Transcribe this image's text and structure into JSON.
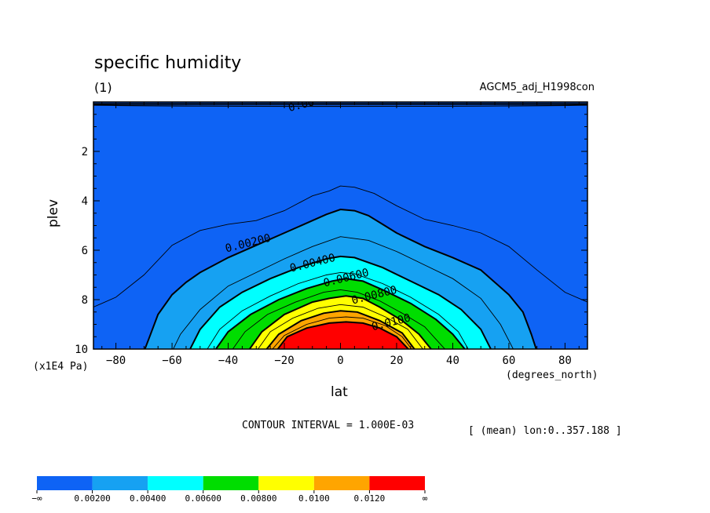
{
  "title": "specific humidity",
  "panel_id": "(1)",
  "run_label": "AGCM5_adj_H1998con",
  "interval_text": "CONTOUR INTERVAL = 1.000E-03",
  "mean_info": "[ (mean) lon:0..357.188 ]",
  "chart_data": {
    "type": "heatmap",
    "title": "specific humidity",
    "xlabel": "lat",
    "ylabel": "plev",
    "x_units": "(degrees_north)",
    "y_units": "(x1E4 Pa)",
    "xlim": [
      -88,
      88
    ],
    "ylim": [
      10,
      0
    ],
    "x_ticks": [
      -80,
      -60,
      -40,
      -20,
      0,
      20,
      40,
      60,
      80
    ],
    "x_tick_labels": [
      "−80",
      "−60",
      "−40",
      "−20",
      "0",
      "20",
      "40",
      "60",
      "80"
    ],
    "y_ticks": [
      2,
      4,
      6,
      8,
      10
    ],
    "y_tick_labels": [
      "2",
      "4",
      "6",
      "8",
      "10"
    ],
    "contour_interval": 0.001,
    "levels": [
      0.002,
      0.004,
      0.006,
      0.008,
      0.01,
      0.012
    ],
    "fill_colors": [
      "#0e63f5",
      "#16a1f2",
      "#00ffff",
      "#00dd00",
      "#ffff00",
      "#ffa500",
      "#ff0000"
    ],
    "colorbar_labels": [
      "−∞",
      "0.00200",
      "0.00400",
      "0.00600",
      "0.00800",
      "0.0100",
      "0.0120",
      "∞"
    ],
    "contour_labels": [
      {
        "text": "0.00",
        "lat": -14,
        "plev": 0.1
      },
      {
        "text": "0.00200",
        "lat": -33,
        "plev": 5.7
      },
      {
        "text": "0.00400",
        "lat": -10,
        "plev": 6.5
      },
      {
        "text": "0.00600",
        "lat": 2,
        "plev": 7.1
      },
      {
        "text": "0.00800",
        "lat": 12,
        "plev": 7.8
      },
      {
        "text": "0.0100",
        "lat": 18,
        "plev": 8.9
      }
    ],
    "contours": [
      {
        "level": 0.001,
        "points": [
          [
            -88,
            8.3
          ],
          [
            -80,
            7.9
          ],
          [
            -70,
            7.0
          ],
          [
            -60,
            5.8
          ],
          [
            -50,
            5.2
          ],
          [
            -40,
            4.95
          ],
          [
            -30,
            4.8
          ],
          [
            -20,
            4.4
          ],
          [
            -10,
            3.8
          ],
          [
            -4,
            3.6
          ],
          [
            0,
            3.4
          ],
          [
            5,
            3.45
          ],
          [
            12,
            3.7
          ],
          [
            20,
            4.2
          ],
          [
            30,
            4.75
          ],
          [
            40,
            5.0
          ],
          [
            50,
            5.3
          ],
          [
            60,
            5.85
          ],
          [
            70,
            6.8
          ],
          [
            80,
            7.7
          ],
          [
            88,
            8.1
          ]
        ]
      },
      {
        "level": 0.002,
        "points": [
          [
            -70,
            10.1
          ],
          [
            -68,
            9.5
          ],
          [
            -65,
            8.6
          ],
          [
            -60,
            7.8
          ],
          [
            -55,
            7.3
          ],
          [
            -50,
            6.9
          ],
          [
            -40,
            6.3
          ],
          [
            -30,
            5.8
          ],
          [
            -20,
            5.3
          ],
          [
            -10,
            4.8
          ],
          [
            -5,
            4.55
          ],
          [
            0,
            4.35
          ],
          [
            5,
            4.4
          ],
          [
            10,
            4.6
          ],
          [
            15,
            4.95
          ],
          [
            20,
            5.3
          ],
          [
            30,
            5.85
          ],
          [
            40,
            6.3
          ],
          [
            50,
            6.8
          ],
          [
            60,
            7.8
          ],
          [
            65,
            8.5
          ],
          [
            68,
            9.4
          ],
          [
            70,
            10.1
          ]
        ]
      },
      {
        "level": 0.003,
        "points": [
          [
            -60,
            10.1
          ],
          [
            -57,
            9.4
          ],
          [
            -50,
            8.4
          ],
          [
            -40,
            7.45
          ],
          [
            -30,
            6.9
          ],
          [
            -20,
            6.35
          ],
          [
            -10,
            5.85
          ],
          [
            0,
            5.45
          ],
          [
            10,
            5.6
          ],
          [
            20,
            6.05
          ],
          [
            30,
            6.6
          ],
          [
            40,
            7.15
          ],
          [
            50,
            7.95
          ],
          [
            57,
            9.0
          ],
          [
            62,
            10.1
          ]
        ]
      },
      {
        "level": 0.004,
        "points": [
          [
            -54,
            10.1
          ],
          [
            -50,
            9.2
          ],
          [
            -43,
            8.3
          ],
          [
            -35,
            7.7
          ],
          [
            -25,
            7.15
          ],
          [
            -15,
            6.7
          ],
          [
            -5,
            6.35
          ],
          [
            0,
            6.25
          ],
          [
            5,
            6.3
          ],
          [
            15,
            6.7
          ],
          [
            25,
            7.25
          ],
          [
            35,
            7.8
          ],
          [
            43,
            8.4
          ],
          [
            50,
            9.2
          ],
          [
            54,
            10.1
          ]
        ]
      },
      {
        "level": 0.005,
        "points": [
          [
            -48,
            10.1
          ],
          [
            -43,
            9.2
          ],
          [
            -35,
            8.45
          ],
          [
            -25,
            7.85
          ],
          [
            -15,
            7.35
          ],
          [
            -5,
            7.0
          ],
          [
            0,
            6.9
          ],
          [
            5,
            6.95
          ],
          [
            15,
            7.35
          ],
          [
            25,
            7.9
          ],
          [
            35,
            8.6
          ],
          [
            42,
            9.3
          ],
          [
            46,
            10.1
          ]
        ]
      },
      {
        "level": 0.006,
        "points": [
          [
            -45,
            10.1
          ],
          [
            -40,
            9.3
          ],
          [
            -32,
            8.6
          ],
          [
            -22,
            8.0
          ],
          [
            -12,
            7.55
          ],
          [
            -3,
            7.25
          ],
          [
            2,
            7.15
          ],
          [
            8,
            7.25
          ],
          [
            15,
            7.6
          ],
          [
            25,
            8.15
          ],
          [
            34,
            8.8
          ],
          [
            40,
            9.4
          ],
          [
            45,
            10.1
          ]
        ]
      },
      {
        "level": 0.007,
        "points": [
          [
            -39,
            10.1
          ],
          [
            -34,
            9.3
          ],
          [
            -26,
            8.6
          ],
          [
            -16,
            8.1
          ],
          [
            -6,
            7.7
          ],
          [
            0,
            7.6
          ],
          [
            6,
            7.7
          ],
          [
            14,
            8.05
          ],
          [
            22,
            8.55
          ],
          [
            30,
            9.1
          ],
          [
            34,
            9.6
          ],
          [
            38,
            10.1
          ]
        ]
      },
      {
        "level": 0.008,
        "points": [
          [
            -33,
            10.1
          ],
          [
            -28,
            9.3
          ],
          [
            -20,
            8.6
          ],
          [
            -10,
            8.1
          ],
          [
            -4,
            7.95
          ],
          [
            2,
            7.85
          ],
          [
            8,
            7.95
          ],
          [
            14,
            8.3
          ],
          [
            22,
            8.85
          ],
          [
            28,
            9.4
          ],
          [
            33,
            10.1
          ]
        ]
      },
      {
        "level": 0.009,
        "points": [
          [
            -30,
            10.1
          ],
          [
            -25,
            9.3
          ],
          [
            -17,
            8.75
          ],
          [
            -8,
            8.35
          ],
          [
            0,
            8.2
          ],
          [
            8,
            8.3
          ],
          [
            16,
            8.7
          ],
          [
            24,
            9.2
          ],
          [
            30,
            10.1
          ]
        ]
      },
      {
        "level": 0.01,
        "points": [
          [
            -27,
            10.1
          ],
          [
            -22,
            9.4
          ],
          [
            -14,
            8.85
          ],
          [
            -6,
            8.55
          ],
          [
            0,
            8.45
          ],
          [
            6,
            8.5
          ],
          [
            14,
            8.85
          ],
          [
            22,
            9.35
          ],
          [
            27,
            10.1
          ]
        ]
      },
      {
        "level": 0.011,
        "points": [
          [
            -25,
            10.1
          ],
          [
            -20,
            9.45
          ],
          [
            -12,
            9.0
          ],
          [
            -4,
            8.75
          ],
          [
            2,
            8.7
          ],
          [
            8,
            8.75
          ],
          [
            16,
            9.05
          ],
          [
            22,
            9.5
          ],
          [
            26,
            10.1
          ]
        ]
      },
      {
        "level": 0.012,
        "points": [
          [
            -23,
            10.1
          ],
          [
            -19,
            9.5
          ],
          [
            -12,
            9.15
          ],
          [
            -4,
            8.95
          ],
          [
            2,
            8.9
          ],
          [
            8,
            8.95
          ],
          [
            14,
            9.15
          ],
          [
            20,
            9.5
          ],
          [
            25,
            10.1
          ]
        ]
      }
    ]
  }
}
